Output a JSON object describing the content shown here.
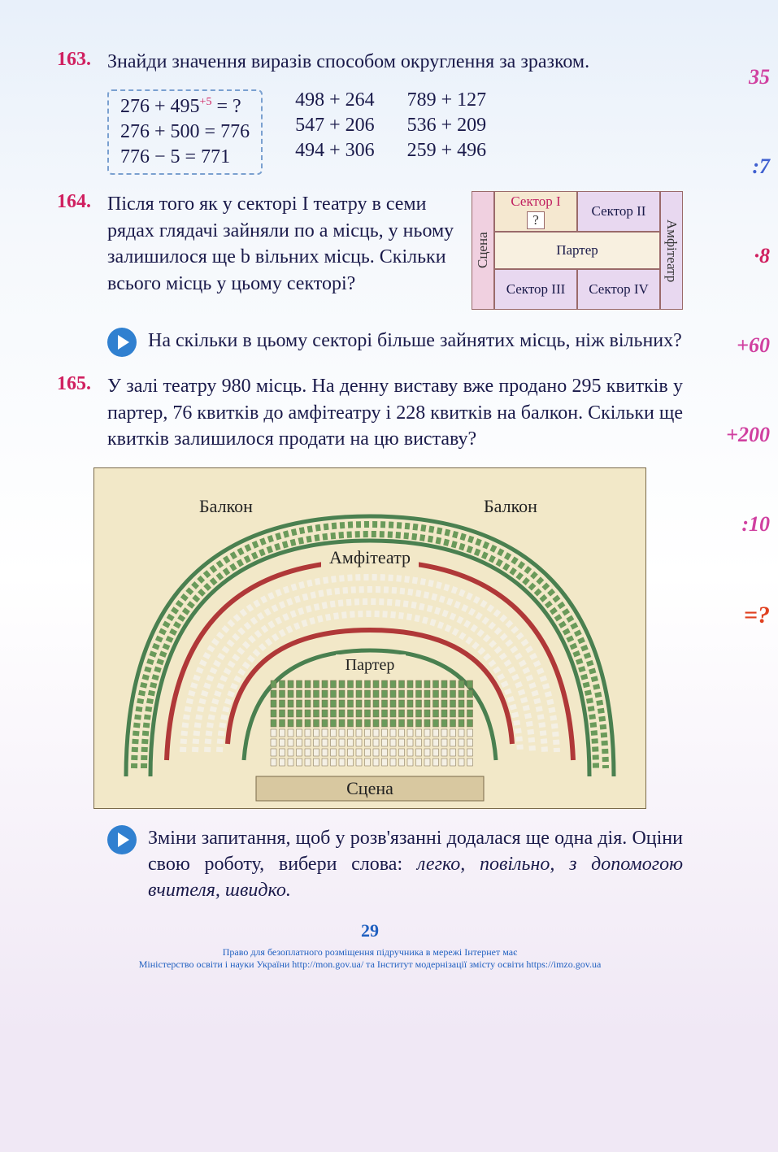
{
  "page_number": "29",
  "side_labels": [
    "35",
    ":7",
    "·8",
    "+60",
    "+200",
    ":10",
    "=?"
  ],
  "task163": {
    "num": "163.",
    "prompt": "Знайди значення виразів способом округлення за зразком.",
    "example": {
      "line1_a": "276 + 495",
      "sup": "+5",
      "line1_b": " = ?",
      "line2": "276 + 500 = 776",
      "line3": "776 − 5 = 771"
    },
    "col2": [
      "498 + 264",
      "547 + 206",
      "494 + 306"
    ],
    "col3": [
      "789 + 127",
      "536 + 209",
      "259 + 496"
    ]
  },
  "task164": {
    "num": "164.",
    "text": "Після того як у секторі I театру в семи рядах глядачі зайняли по а місць, у ньому залишилося ще b вільних місць. Скільки всього місць у цьому секторі?",
    "diagram": {
      "scene": "Сцена",
      "sector1": "Сектор I",
      "q": "?",
      "sector2": "Сектор II",
      "parter": "Партер",
      "sector3": "Сектор III",
      "sector4": "Сектор IV",
      "amf": "Амфітеатр"
    },
    "sub": "На скільки в цьому секторі більше зайнятих місць, ніж вільних?"
  },
  "task165": {
    "num": "165.",
    "text": "У залі театру 980 місць. На денну виставу вже продано 295 квитків у партер, 76 квитків до амфітеатру і 228 квитків на балкон. Скільки ще квитків залишилося продати на цю виставу?",
    "svg": {
      "balcony_l": "Балкон",
      "balcony_r": "Балкон",
      "amf": "Амфітеатр",
      "parter": "Партер",
      "scene": "Сцена",
      "bg": "#f2e8c8",
      "seat_green": "#6a9a5a",
      "seat_white": "#f4f0e4",
      "arc_green": "#4a8050",
      "arc_red": "#b03838"
    },
    "sub": "Зміни запитання, щоб у розв'язанні додалася ще одна дія. Оціни свою роботу, вибери слова: ",
    "sub_italic": "легко, повільно, з допомогою вчителя, швидко."
  },
  "footer": {
    "l1": "Право для безоплатного розміщення підручника в мережі Інтернет має",
    "l2": "Міністерство освіти і науки України http://mon.gov.ua/ та Інститут модернізації змісту освіти https://imzo.gov.ua"
  }
}
